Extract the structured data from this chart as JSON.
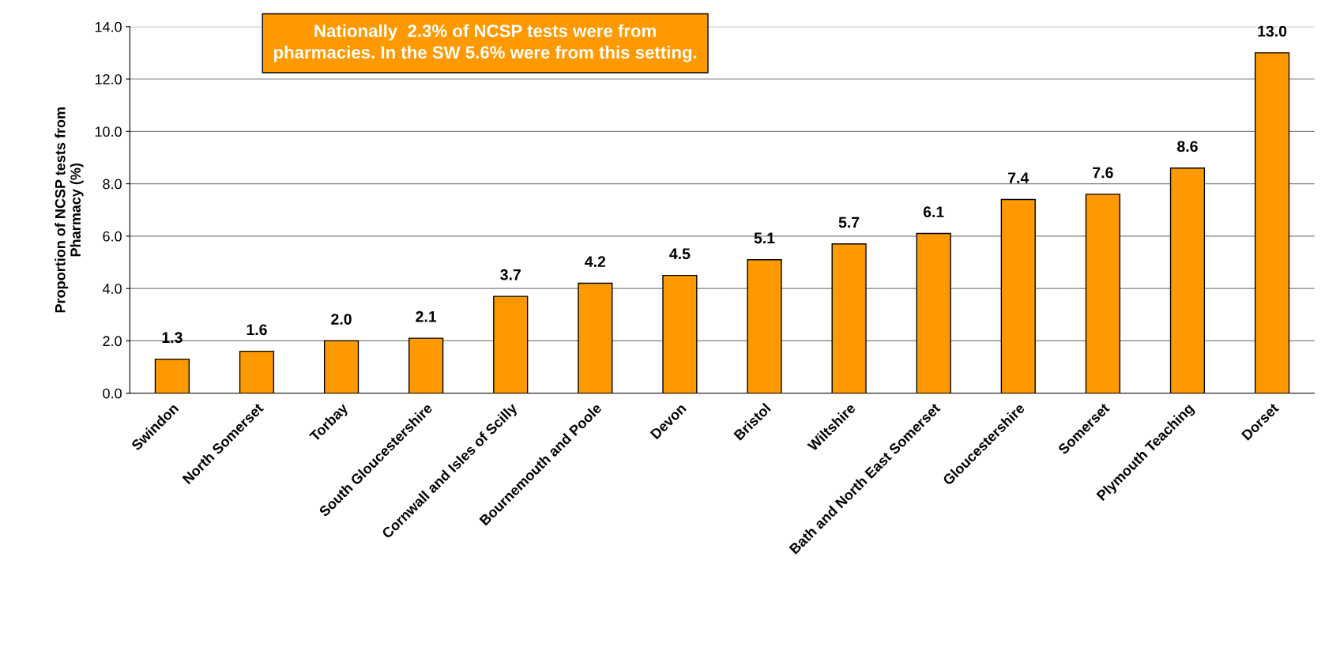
{
  "chart_data": {
    "type": "bar",
    "ylabel": "Proportion of NCSP tests from\nPharmacy (%)",
    "annotations": [
      "Nationally  2.3% of NCSP tests were from\npharmacies. In the SW 5.6% were from this setting."
    ],
    "categories": [
      "Swindon",
      "North Somerset",
      "Torbay",
      "South Gloucestershire",
      "Cornwall and Isles of Scilly",
      "Bournemouth and Poole",
      "Devon",
      "Bristol",
      "Wiltshire",
      "Bath and North East Somerset",
      "Gloucestershire",
      "Somerset",
      "Plymouth Teaching",
      "Dorset"
    ],
    "values": [
      1.3,
      1.6,
      2.0,
      2.1,
      3.7,
      4.2,
      4.5,
      5.1,
      5.7,
      6.1,
      7.4,
      7.6,
      8.6,
      13.0
    ],
    "value_labels": [
      "1.3",
      "1.6",
      "2.0",
      "2.1",
      "3.7",
      "4.2",
      "4.5",
      "5.1",
      "5.7",
      "6.1",
      "7.4",
      "7.6",
      "8.6",
      "13.0"
    ],
    "color": "#ff9900",
    "ylim": [
      0,
      14
    ],
    "yticks": [
      {
        "value": 0,
        "label": "0.0"
      },
      {
        "value": 2,
        "label": "2.0"
      },
      {
        "value": 4,
        "label": "4.0"
      },
      {
        "value": 6,
        "label": "6.0"
      },
      {
        "value": 8,
        "label": "8.0"
      },
      {
        "value": 10,
        "label": "10.0"
      },
      {
        "value": 12,
        "label": "12.0"
      },
      {
        "value": 14,
        "label": "14.0"
      }
    ],
    "grid": "y"
  }
}
